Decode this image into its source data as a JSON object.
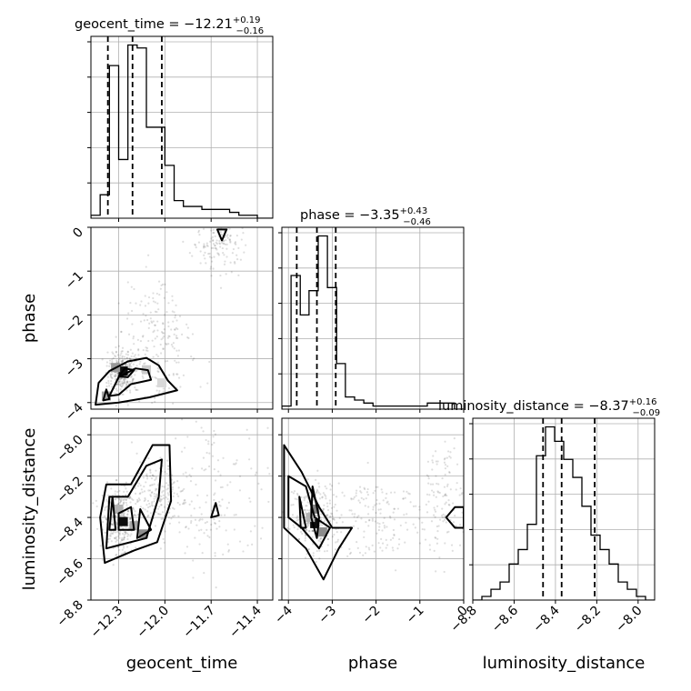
{
  "chart_data": {
    "type": "corner",
    "parameters": [
      "geocent_time",
      "phase",
      "luminosity_distance"
    ],
    "grid": true,
    "titles": [
      {
        "main": "geocent_time = −12.21",
        "sup": "+0.19",
        "sub": "−0.16"
      },
      {
        "main": "phase = −3.35",
        "sup": "+0.43",
        "sub": "−0.46"
      },
      {
        "main": "luminosity_distance = −8.37",
        "sup": "+0.16",
        "sub": "−0.09"
      }
    ],
    "ranges": [
      [
        -12.48,
        -11.3
      ],
      [
        -4.15,
        0.0
      ],
      [
        -8.8,
        -7.92
      ]
    ],
    "ticks": [
      {
        "values": [
          -12.3,
          -12.0,
          -11.7,
          -11.4
        ],
        "labels": [
          "−12.3",
          "−12.0",
          "−11.7",
          "−11.4"
        ]
      },
      {
        "values": [
          -4,
          -3,
          -2,
          -1,
          0
        ],
        "labels": [
          "−4",
          "−3",
          "−2",
          "−1",
          "0"
        ]
      },
      {
        "values": [
          -8.8,
          -8.6,
          -8.4,
          -8.2,
          -8.0
        ],
        "labels": [
          "−8.8",
          "−8.6",
          "−8.4",
          "−8.2",
          "−8.0"
        ]
      }
    ],
    "histograms": [
      {
        "edges": [
          -12.48,
          -12.42,
          -12.36,
          -12.3,
          -12.24,
          -12.18,
          -12.12,
          -12.06,
          -12.0,
          -11.94,
          -11.88,
          -11.82,
          -11.76,
          -11.7,
          -11.64,
          -11.58,
          -11.52,
          -11.46,
          -11.4,
          -11.34,
          -11.3
        ],
        "counts": [
          1,
          8,
          52,
          20,
          59,
          58,
          31,
          31,
          18,
          6,
          4,
          4,
          3,
          3,
          3,
          2,
          1,
          1,
          0,
          0
        ],
        "quantiles": [
          -12.37,
          -12.21,
          -12.02
        ]
      },
      {
        "edges": [
          -4.15,
          -3.94,
          -3.73,
          -3.53,
          -3.32,
          -3.11,
          -2.9,
          -2.7,
          -2.49,
          -2.28,
          -2.07,
          -1.87,
          -1.66,
          -1.45,
          -1.24,
          -1.04,
          -0.83,
          -0.62,
          -0.41,
          -0.21,
          0.0
        ],
        "counts": [
          1,
          44,
          31,
          39,
          57,
          40,
          15,
          4,
          3,
          2,
          1,
          1,
          1,
          1,
          1,
          1,
          2,
          2,
          2,
          0
        ],
        "quantiles": [
          -3.81,
          -3.35,
          -2.92
        ]
      },
      {
        "edges": [
          -8.8,
          -8.756,
          -8.712,
          -8.668,
          -8.624,
          -8.58,
          -8.536,
          -8.492,
          -8.448,
          -8.404,
          -8.36,
          -8.316,
          -8.272,
          -8.228,
          -8.184,
          -8.14,
          -8.096,
          -8.052,
          -8.008,
          -7.964,
          -7.92
        ],
        "counts": [
          0,
          1,
          3,
          5,
          10,
          14,
          21,
          40,
          48,
          44,
          39,
          34,
          26,
          18,
          14,
          10,
          5,
          3,
          1,
          0
        ],
        "quantiles": [
          -8.46,
          -8.37,
          -8.21
        ]
      }
    ],
    "scatter": [
      {
        "x": 0,
        "y": 1,
        "hotspots": [
          [
            -12.28,
            -3.3,
            0.06,
            0.35,
            1.0
          ],
          [
            -12.05,
            -2.7,
            0.18,
            1.1,
            0.7
          ],
          [
            -11.65,
            -0.3,
            0.12,
            0.5,
            0.5
          ]
        ],
        "pixels": [
          [
            -12.27,
            -3.28,
            0.95
          ],
          [
            -12.32,
            -3.2,
            0.4
          ],
          [
            -12.12,
            -3.25,
            0.2
          ],
          [
            -12.02,
            -3.55,
            0.15
          ],
          [
            -12.38,
            -3.85,
            0.35
          ]
        ],
        "contours": [
          [
            [
              -12.45,
              -4.05
            ],
            [
              -12.43,
              -3.55
            ],
            [
              -12.36,
              -3.28
            ],
            [
              -12.24,
              -3.06
            ],
            [
              -12.12,
              -2.98
            ],
            [
              -12.04,
              -3.15
            ],
            [
              -11.98,
              -3.5
            ],
            [
              -11.92,
              -3.72
            ],
            [
              -12.1,
              -3.88
            ],
            [
              -12.3,
              -4.0
            ]
          ],
          [
            [
              -12.36,
              -3.85
            ],
            [
              -12.3,
              -3.42
            ],
            [
              -12.19,
              -3.22
            ],
            [
              -12.11,
              -3.26
            ],
            [
              -12.09,
              -3.48
            ],
            [
              -12.22,
              -3.58
            ],
            [
              -12.3,
              -3.82
            ]
          ],
          [
            [
              -12.3,
              -3.4
            ],
            [
              -12.26,
              -3.22
            ],
            [
              -12.2,
              -3.26
            ],
            [
              -12.24,
              -3.42
            ]
          ],
          [
            [
              -12.4,
              -3.95
            ],
            [
              -12.38,
              -3.7
            ],
            [
              -12.36,
              -3.92
            ]
          ],
          [
            [
              -11.66,
              -0.05
            ],
            [
              -11.6,
              -0.05
            ],
            [
              -11.63,
              -0.3
            ]
          ]
        ]
      },
      {
        "x": 0,
        "y": 2,
        "hotspots": [
          [
            -12.3,
            -8.4,
            0.08,
            0.12,
            1.0
          ],
          [
            -12.05,
            -8.3,
            0.12,
            0.12,
            0.6
          ],
          [
            -11.7,
            -8.3,
            0.25,
            0.25,
            0.5
          ]
        ],
        "pixels": [
          [
            -12.27,
            -8.42,
            0.95
          ],
          [
            -12.2,
            -8.44,
            0.35
          ],
          [
            -12.3,
            -8.36,
            0.3
          ],
          [
            -12.14,
            -8.48,
            0.45
          ]
        ],
        "contours": [
          [
            [
              -12.39,
              -8.62
            ],
            [
              -12.42,
              -8.4
            ],
            [
              -12.38,
              -8.24
            ],
            [
              -12.22,
              -8.24
            ],
            [
              -12.08,
              -8.05
            ],
            [
              -11.97,
              -8.05
            ],
            [
              -11.96,
              -8.32
            ],
            [
              -12.05,
              -8.52
            ],
            [
              -12.2,
              -8.56
            ]
          ],
          [
            [
              -12.38,
              -8.55
            ],
            [
              -12.36,
              -8.3
            ],
            [
              -12.24,
              -8.3
            ],
            [
              -12.12,
              -8.15
            ],
            [
              -12.02,
              -8.12
            ],
            [
              -12.04,
              -8.3
            ],
            [
              -12.12,
              -8.5
            ]
          ],
          [
            [
              -12.36,
              -8.46
            ],
            [
              -12.34,
              -8.3
            ],
            [
              -12.32,
              -8.46
            ]
          ],
          [
            [
              -12.3,
              -8.46
            ],
            [
              -12.3,
              -8.38
            ],
            [
              -12.22,
              -8.35
            ],
            [
              -12.2,
              -8.46
            ]
          ],
          [
            [
              -12.18,
              -8.5
            ],
            [
              -12.16,
              -8.36
            ],
            [
              -12.09,
              -8.46
            ]
          ],
          [
            [
              -11.7,
              -8.4
            ],
            [
              -11.67,
              -8.33
            ],
            [
              -11.65,
              -8.39
            ]
          ]
        ]
      },
      {
        "x": 1,
        "y": 2,
        "hotspots": [
          [
            -3.4,
            -8.4,
            0.35,
            0.12,
            1.0
          ],
          [
            -2.0,
            -8.4,
            0.8,
            0.15,
            0.5
          ],
          [
            -0.5,
            -8.3,
            0.4,
            0.2,
            0.4
          ]
        ],
        "pixels": [
          [
            -3.4,
            -8.43,
            0.95
          ],
          [
            -3.4,
            -8.36,
            0.5
          ],
          [
            -3.22,
            -8.47,
            0.45
          ],
          [
            -3.5,
            -8.4,
            0.3
          ]
        ],
        "contours": [
          [
            [
              -4.1,
              -8.05
            ],
            [
              -3.7,
              -8.18
            ],
            [
              -3.3,
              -8.35
            ],
            [
              -3.0,
              -8.45
            ],
            [
              -2.55,
              -8.45
            ],
            [
              -2.85,
              -8.55
            ],
            [
              -3.2,
              -8.7
            ],
            [
              -3.6,
              -8.55
            ],
            [
              -4.1,
              -8.45
            ]
          ],
          [
            [
              -4.0,
              -8.2
            ],
            [
              -3.6,
              -8.25
            ],
            [
              -3.4,
              -8.4
            ],
            [
              -3.05,
              -8.45
            ],
            [
              -3.3,
              -8.55
            ],
            [
              -3.7,
              -8.45
            ],
            [
              -4.0,
              -8.4
            ]
          ],
          [
            [
              -3.75,
              -8.3
            ],
            [
              -3.6,
              -8.45
            ],
            [
              -3.72,
              -8.45
            ]
          ],
          [
            [
              -3.45,
              -8.25
            ],
            [
              -3.3,
              -8.4
            ],
            [
              -3.35,
              -8.5
            ],
            [
              -3.48,
              -8.4
            ]
          ],
          [
            [
              -0.4,
              -8.4
            ],
            [
              -0.2,
              -8.35
            ],
            [
              0.0,
              -8.35
            ],
            [
              0.0,
              -8.45
            ],
            [
              -0.2,
              -8.45
            ]
          ]
        ]
      }
    ]
  }
}
